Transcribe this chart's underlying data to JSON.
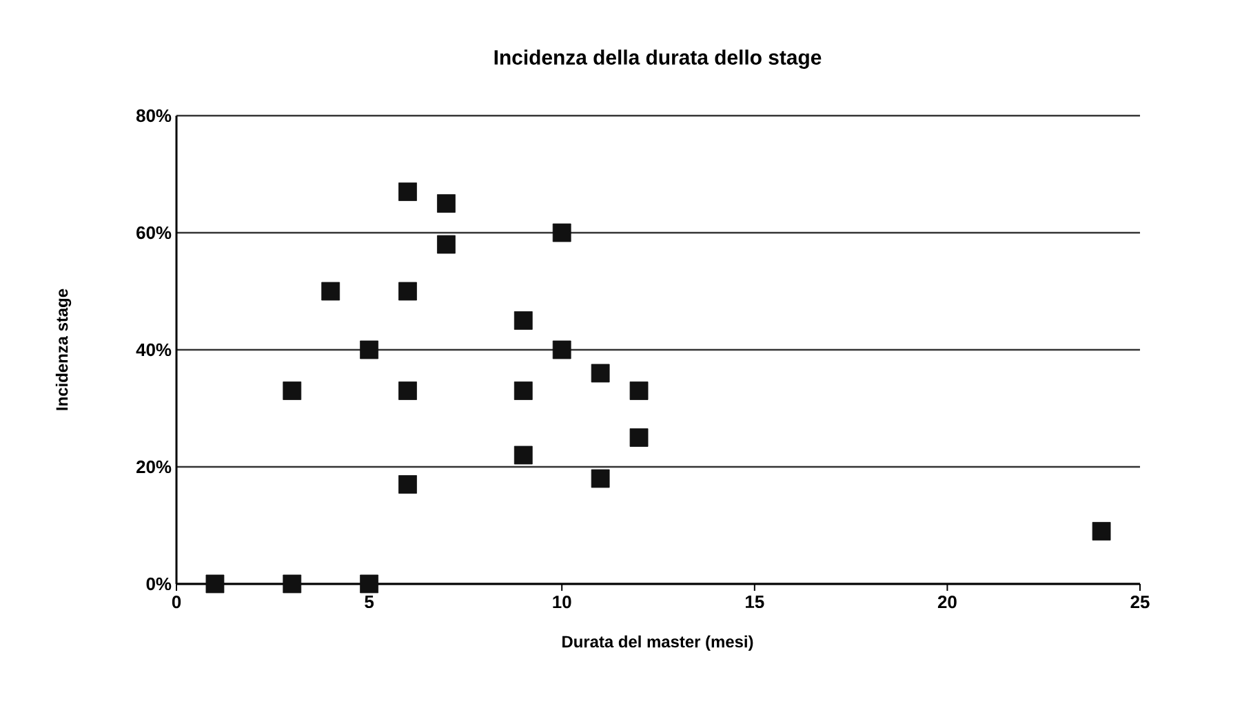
{
  "chart_data": {
    "type": "scatter",
    "title": "Incidenza della durata dello stage",
    "xlabel": "Durata del master (mesi)",
    "ylabel": "Incidenza stage",
    "x": [
      1,
      3,
      5,
      3,
      4,
      5,
      6,
      6,
      6,
      6,
      7,
      7,
      9,
      9,
      9,
      10,
      10,
      11,
      11,
      12,
      12,
      24
    ],
    "values": [
      0,
      0,
      0,
      33,
      50,
      40,
      67,
      50,
      33,
      17,
      65,
      58,
      45,
      33,
      22,
      60,
      40,
      36,
      18,
      33,
      25,
      9
    ],
    "color": "#111111",
    "marker": "square",
    "xlim": [
      0,
      25
    ],
    "xticks": [
      0,
      5,
      10,
      15,
      20,
      25
    ],
    "ylim": [
      0,
      80
    ],
    "yticks": [
      {
        "value": 0,
        "label": "0%"
      },
      {
        "value": 20,
        "label": "20%"
      },
      {
        "value": 40,
        "label": "40%"
      },
      {
        "value": 60,
        "label": "60%"
      },
      {
        "value": 80,
        "label": "80%"
      }
    ],
    "grid": "y"
  }
}
